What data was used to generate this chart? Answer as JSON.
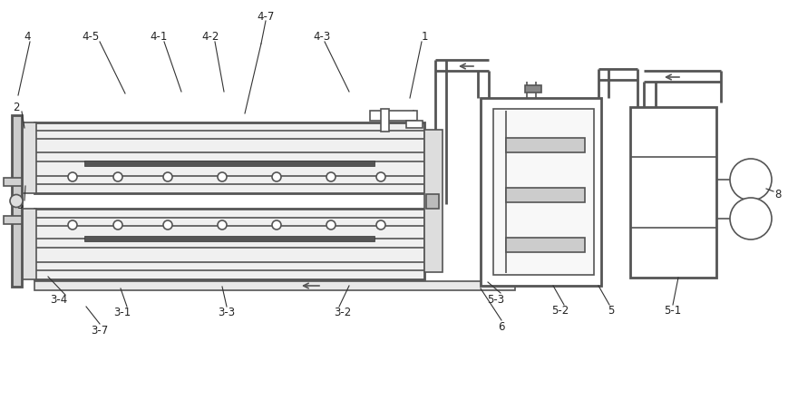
{
  "line_color": "#555555",
  "line_width": 1.2,
  "thick_line": 2.0,
  "label_color": "#222222",
  "label_fontsize": 8.5,
  "fig_width": 8.7,
  "fig_height": 4.63,
  "dpi": 100
}
